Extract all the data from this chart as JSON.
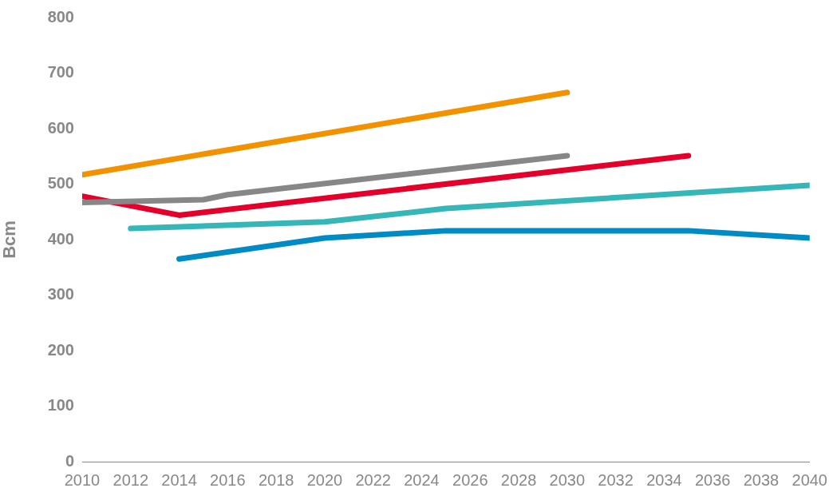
{
  "chart_data": {
    "type": "line",
    "ylabel": "Bcm",
    "xlim": [
      2010,
      2040
    ],
    "xticks": [
      2010,
      2012,
      2014,
      2016,
      2018,
      2020,
      2022,
      2024,
      2026,
      2028,
      2030,
      2032,
      2034,
      2036,
      2038,
      2040
    ],
    "ylim": [
      0,
      800
    ],
    "yticks": [
      0,
      100,
      200,
      300,
      400,
      500,
      600,
      700,
      800
    ],
    "grid": false,
    "legend": false,
    "marker": "none",
    "line_style": "solid",
    "series": [
      {
        "color": "#f39200",
        "x": [
          2010,
          2030
        ],
        "values": [
          517,
          665
        ]
      },
      {
        "color": "#878787",
        "x": [
          2010,
          2015,
          2016,
          2030
        ],
        "values": [
          467,
          472,
          481,
          551
        ]
      },
      {
        "color": "#e4002b",
        "x": [
          2010,
          2014,
          2035
        ],
        "values": [
          478,
          444,
          551
        ]
      },
      {
        "color": "#35b6b9",
        "x": [
          2012,
          2020,
          2025,
          2040
        ],
        "values": [
          420,
          432,
          456,
          498
        ]
      },
      {
        "color": "#008bc4",
        "x": [
          2014,
          2020,
          2025,
          2035,
          2040
        ],
        "values": [
          365,
          403,
          416,
          416,
          403
        ]
      }
    ]
  }
}
